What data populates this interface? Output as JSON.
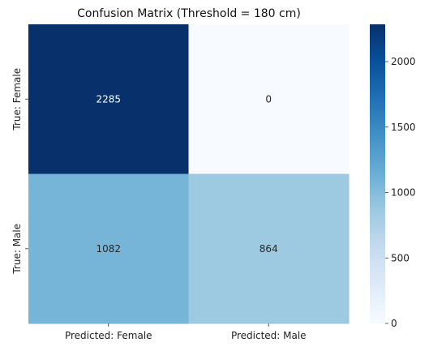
{
  "chart_data": {
    "type": "heatmap",
    "title": "Confusion Matrix (Threshold = 180 cm)",
    "xlabel": "",
    "ylabel": "",
    "x_categories": [
      "Predicted: Female",
      "Predicted: Male"
    ],
    "y_categories": [
      "True: Female",
      "True: Male"
    ],
    "values": [
      [
        2285,
        0
      ],
      [
        1082,
        864
      ]
    ],
    "colormap": "Blues",
    "color_range": [
      0,
      2285
    ],
    "colorbar_ticks": [
      0,
      500,
      1000,
      1500,
      2000
    ],
    "colorbar_tick_labels": [
      "0",
      "500",
      "1000",
      "1500",
      "2000"
    ],
    "grid": false,
    "annotations": true
  }
}
